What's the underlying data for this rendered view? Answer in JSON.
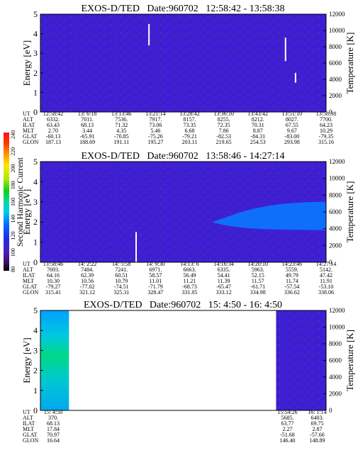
{
  "colorbar": {
    "label": "Second Harmonic Current",
    "ticks": [
      "240",
      "220",
      "200",
      "180",
      "160",
      "140",
      "120",
      "100",
      "80"
    ]
  },
  "colors": {
    "background": "#ffffff",
    "spectrogram_base": "#3a1fd6",
    "speckle": "#8a2a6a",
    "enhanced": "#1c3cf0",
    "spike": "#ffffff",
    "ring_current": "#0a78ff"
  },
  "chart_data": [
    {
      "type": "heatmap",
      "title": "EXOS-D/TED   Date:960702   12:58:42 - 13:58:38",
      "ylabel": "Energy [eV]",
      "y2label": "Temperature [K]",
      "ylim": [
        0,
        5
      ],
      "y2lim": [
        0,
        12000
      ],
      "yticks": [
        "0",
        "1",
        "2",
        "3",
        "4",
        "5"
      ],
      "y2ticks": [
        "0",
        "2000",
        "4000",
        "6000",
        "8000",
        "10000",
        "12000"
      ],
      "table": {
        "row_labels": [
          "UT",
          "ALT",
          "ILAT",
          "MLT",
          "GLAT",
          "GLON"
        ],
        "columns": [
          [
            "12:58:42",
            "6332.",
            "63.43",
            "2.70",
            "-60.13",
            "187.13"
          ],
          [
            "13: 6:18",
            "7011.",
            "68.13",
            "3.44",
            "-65.91",
            "188.69"
          ],
          [
            "13:13:46",
            "7536.",
            "71.32",
            "4.35",
            "-70.85",
            "191.11"
          ],
          [
            "13:21:14",
            "7917.",
            "73.06",
            "5.46",
            "-75.26",
            "195.27"
          ],
          [
            "13:28:42",
            "8157.",
            "73.35",
            "6.68",
            "-79.21",
            "203.11"
          ],
          [
            "13:36:10",
            "8255.",
            "72.35",
            "7.86",
            "-82.53",
            "219.65"
          ],
          [
            "13:43:42",
            "8212.",
            "70.31",
            "8.87",
            "-84.31",
            "254.53"
          ],
          [
            "13:51:10",
            "8027.",
            "67.55",
            "9.67",
            "-83.00",
            "293.98"
          ],
          [
            "13:58:38",
            "7700.",
            "64.23",
            "10.29",
            "-79.35",
            "315.16"
          ]
        ]
      },
      "coverage": [
        [
          0,
          1
        ]
      ],
      "spikes": [
        {
          "t": 0.38,
          "e0": 3.4,
          "e1": 4.5
        },
        {
          "t": 0.858,
          "e0": 2.6,
          "e1": 3.8
        },
        {
          "t": 0.893,
          "e0": 1.5,
          "e1": 2.0
        }
      ],
      "enhanced": []
    },
    {
      "type": "heatmap",
      "title": "EXOS-D/TED   Date:960702   13:58:46 - 14:27:14",
      "ylabel": "Energy [eV]",
      "y2label": "Temperature [K]",
      "ylim": [
        0,
        5
      ],
      "y2lim": [
        0,
        12000
      ],
      "yticks": [
        "0",
        "1",
        "2",
        "3",
        "4",
        "5"
      ],
      "y2ticks": [
        "0",
        "2000",
        "4000",
        "6000",
        "8000",
        "10000",
        "12000"
      ],
      "table": {
        "row_labels": [
          "UT",
          "ALT",
          "ILAT",
          "MLT",
          "GLAT",
          "GLON"
        ],
        "columns": [
          [
            "13:58:46",
            "7693.",
            "64.16",
            "10.30",
            "-79.27",
            "315.41"
          ],
          [
            "14: 2:22",
            "7484.",
            "62.39",
            "10.56",
            "-77.02",
            "321.12"
          ],
          [
            "14: 5:58",
            "7241.",
            "60.51",
            "10.79",
            "-74.51",
            "325.31"
          ],
          [
            "14: 9:30",
            "6971.",
            "58.57",
            "11.01",
            "-71.79",
            "328.47"
          ],
          [
            "14:13: 6",
            "6663.",
            "56.49",
            "11.21",
            "-68.73",
            "331.05"
          ],
          [
            "14:16:34",
            "6335.",
            "54.41",
            "11.39",
            "-65.47",
            "333.12"
          ],
          [
            "14:20:10",
            "5963.",
            "52.15",
            "11.57",
            "-61.71",
            "334.98"
          ],
          [
            "14:23:46",
            "5559.",
            "49.79",
            "11.74",
            "-57.54",
            "336.62"
          ],
          [
            "14:27:14",
            "5142.",
            "47.42",
            "11.91",
            "-53.10",
            "338.06"
          ]
        ]
      },
      "coverage": [
        [
          0,
          1
        ]
      ],
      "spikes": [
        {
          "t": 0.335,
          "e0": 0.0,
          "e1": 1.5
        }
      ],
      "enhanced": [
        {
          "t0": 0.6,
          "t1": 1.0,
          "e_low_start": 1.7,
          "e_high_start": 2.3,
          "e_low_end": 1.6,
          "e_high_end": 3.0
        }
      ]
    },
    {
      "type": "heatmap",
      "title": "EXOS-D/TED   Date:960702   15: 4:50 - 16: 4:50",
      "ylabel": "Energy [eV]",
      "y2label": "Temperature [K]",
      "ylim": [
        0,
        5
      ],
      "y2lim": [
        0,
        12000
      ],
      "yticks": [
        "0",
        "1",
        "2",
        "3",
        "4",
        "5"
      ],
      "y2ticks": [
        "0",
        "2000",
        "4000",
        "6000",
        "8000",
        "10000",
        "12000"
      ],
      "table": {
        "row_labels": [
          "UT",
          "ALT",
          "ILAT",
          "MLT",
          "GLAT",
          "GLON"
        ],
        "columns": [
          [
            "15: 4:50",
            "370.",
            "68.13",
            "17.84",
            "70.97",
            "16.64"
          ],
          [
            "15:54:26",
            "5685.",
            "63.77",
            "2.27",
            "-51.68",
            "146.40"
          ],
          [
            "16: 1:14",
            "6403.",
            "69.75",
            "2.87",
            "-57.66",
            "148.89"
          ]
        ]
      },
      "coverage": [
        [
          0,
          0.1
        ],
        [
          0.825,
          1
        ]
      ],
      "spikes": [],
      "enhanced": [],
      "ring_gradient": true
    }
  ]
}
